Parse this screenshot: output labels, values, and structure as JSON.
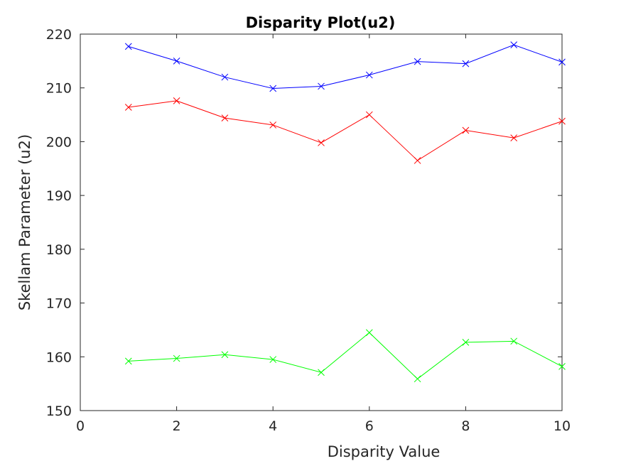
{
  "chart_data": {
    "type": "line",
    "title": "Disparity Plot(u2)",
    "xlabel": "Disparity Value",
    "ylabel": "Skellam Parameter (u2)",
    "xlim": [
      0,
      10
    ],
    "ylim": [
      150,
      220
    ],
    "xticks": [
      0,
      2,
      4,
      6,
      8,
      10
    ],
    "yticks": [
      150,
      160,
      170,
      180,
      190,
      200,
      210,
      220
    ],
    "grid": false,
    "marker": "x",
    "x": [
      1,
      2,
      3,
      4,
      5,
      6,
      7,
      8,
      9,
      10
    ],
    "series": [
      {
        "name": "blue",
        "color": "#0000ff",
        "values": [
          217.7,
          215.0,
          212.0,
          209.9,
          210.3,
          212.4,
          214.9,
          214.5,
          218.0,
          214.8
        ]
      },
      {
        "name": "red",
        "color": "#ff0000",
        "values": [
          206.4,
          207.6,
          204.4,
          203.1,
          199.8,
          205.0,
          196.5,
          202.1,
          200.7,
          203.8
        ]
      },
      {
        "name": "green",
        "color": "#00ff00",
        "values": [
          159.2,
          159.7,
          160.4,
          159.5,
          157.1,
          164.5,
          155.9,
          162.7,
          162.9,
          158.2
        ]
      }
    ]
  }
}
